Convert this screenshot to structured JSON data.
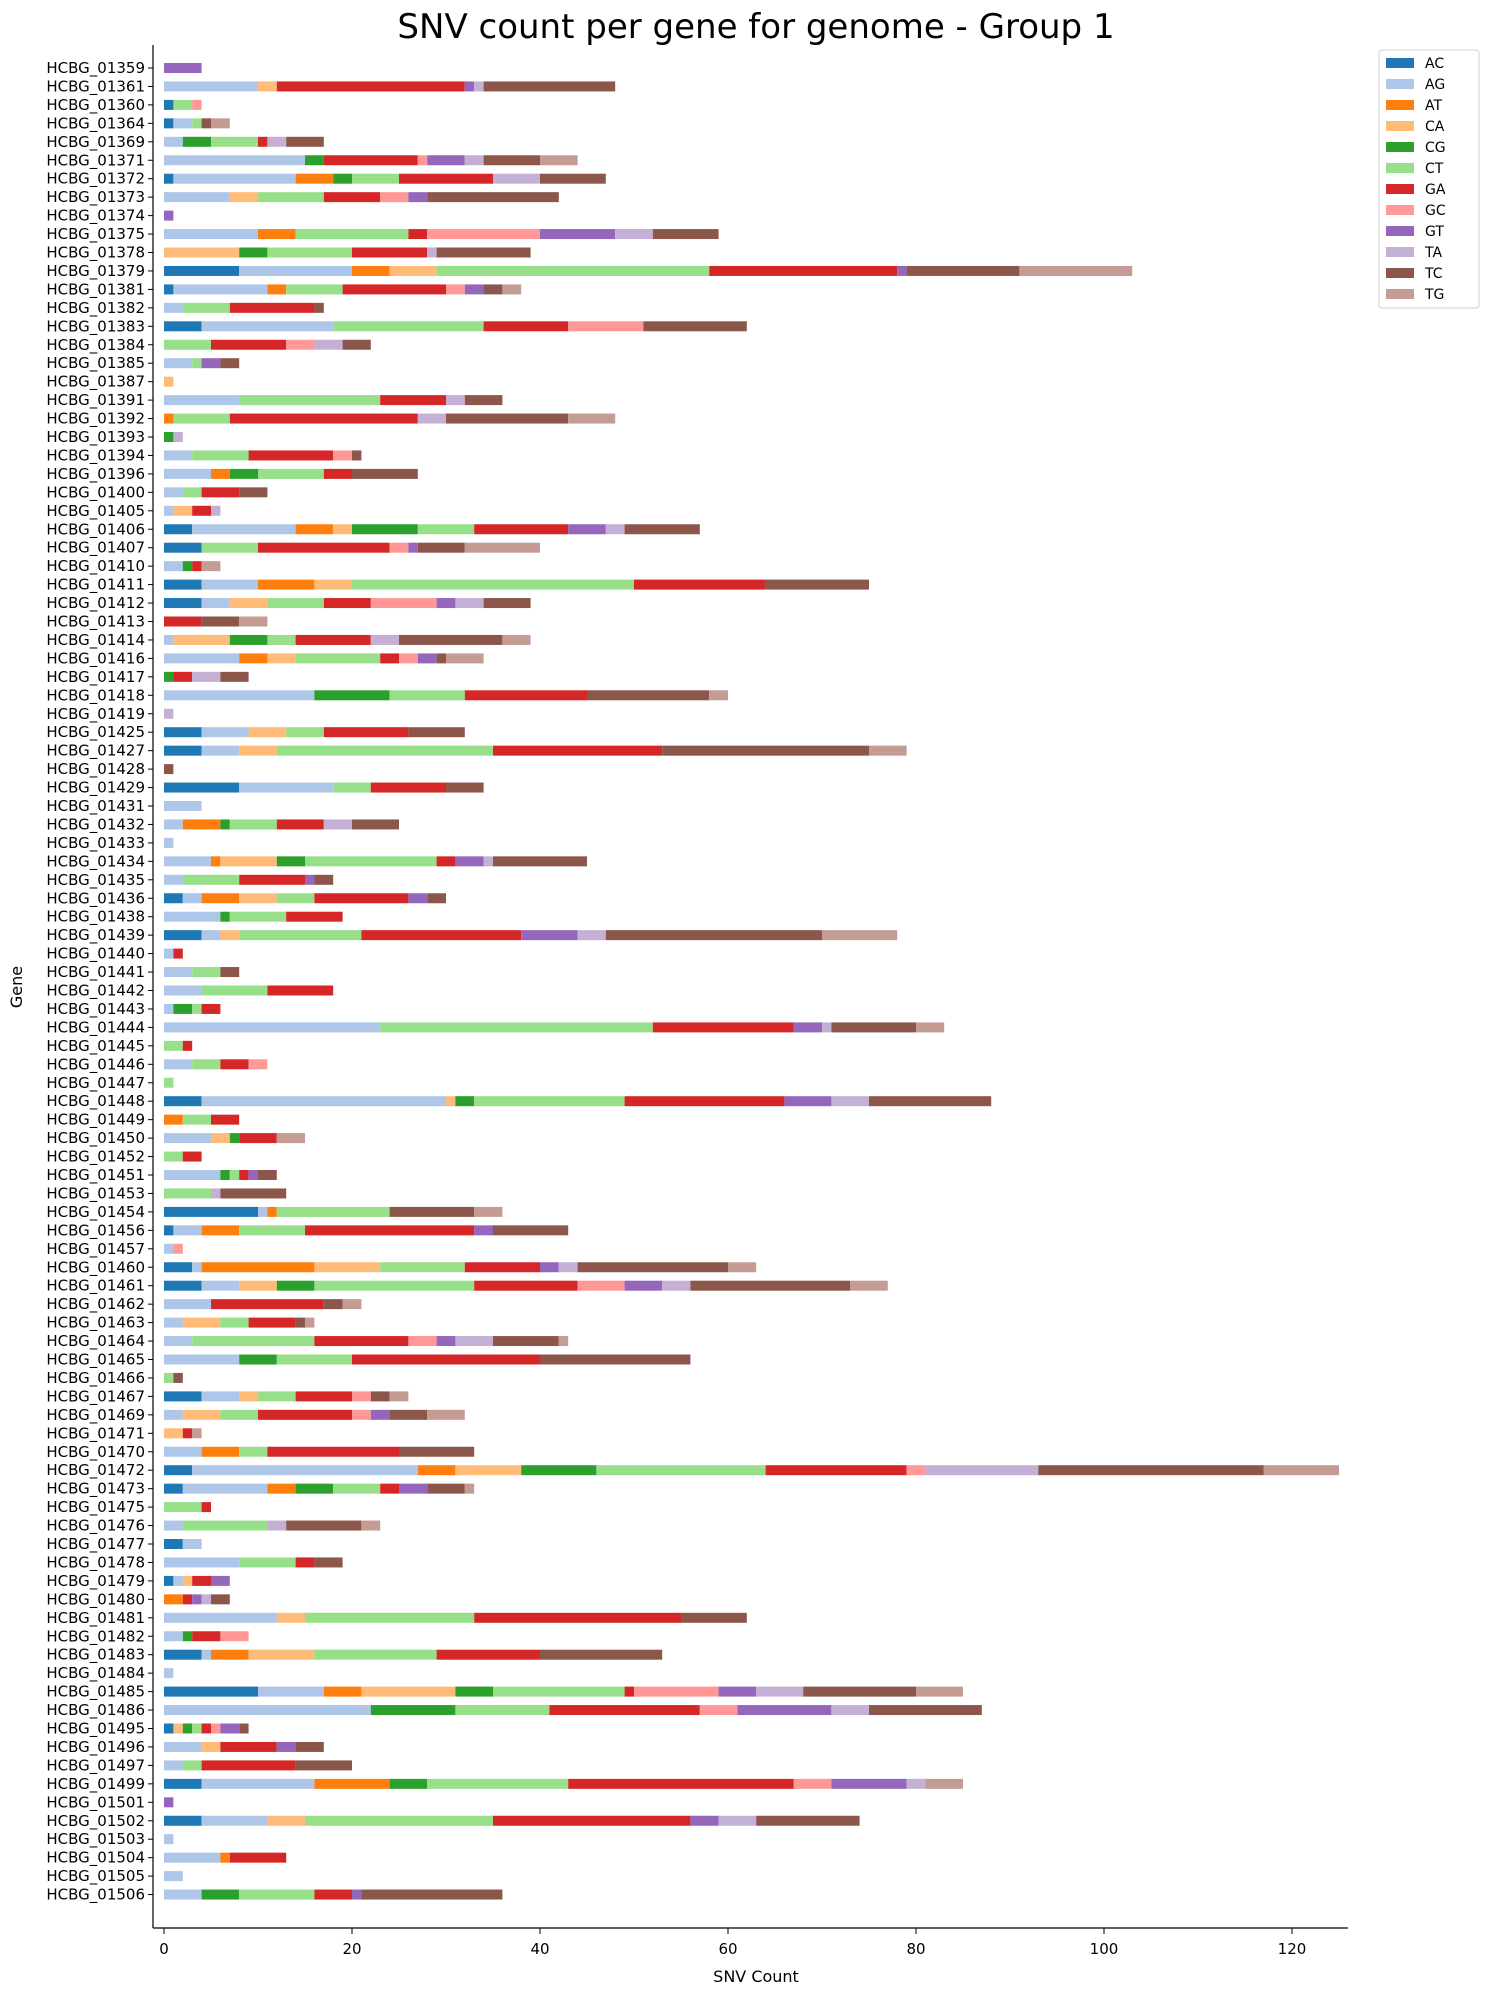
{
  "chart_data": {
    "type": "bar",
    "orientation": "horizontal",
    "stacked": true,
    "title": "SNV count per gene for genome - Group 1",
    "xlabel": "SNV Count",
    "ylabel": "Gene",
    "xlim": [
      -1,
      126
    ],
    "xticks": [
      0,
      20,
      40,
      60,
      80,
      100,
      120
    ],
    "grid": false,
    "legend_position": "top-right",
    "categories": [
      "HCBG_01359",
      "HCBG_01361",
      "HCBG_01360",
      "HCBG_01364",
      "HCBG_01369",
      "HCBG_01371",
      "HCBG_01372",
      "HCBG_01373",
      "HCBG_01374",
      "HCBG_01375",
      "HCBG_01378",
      "HCBG_01379",
      "HCBG_01381",
      "HCBG_01382",
      "HCBG_01383",
      "HCBG_01384",
      "HCBG_01385",
      "HCBG_01387",
      "HCBG_01391",
      "HCBG_01392",
      "HCBG_01393",
      "HCBG_01394",
      "HCBG_01396",
      "HCBG_01400",
      "HCBG_01405",
      "HCBG_01406",
      "HCBG_01407",
      "HCBG_01410",
      "HCBG_01411",
      "HCBG_01412",
      "HCBG_01413",
      "HCBG_01414",
      "HCBG_01416",
      "HCBG_01417",
      "HCBG_01418",
      "HCBG_01419",
      "HCBG_01425",
      "HCBG_01427",
      "HCBG_01428",
      "HCBG_01429",
      "HCBG_01431",
      "HCBG_01432",
      "HCBG_01433",
      "HCBG_01434",
      "HCBG_01435",
      "HCBG_01436",
      "HCBG_01438",
      "HCBG_01439",
      "HCBG_01440",
      "HCBG_01441",
      "HCBG_01442",
      "HCBG_01443",
      "HCBG_01444",
      "HCBG_01445",
      "HCBG_01446",
      "HCBG_01447",
      "HCBG_01448",
      "HCBG_01449",
      "HCBG_01450",
      "HCBG_01452",
      "HCBG_01451",
      "HCBG_01453",
      "HCBG_01454",
      "HCBG_01456",
      "HCBG_01457",
      "HCBG_01460",
      "HCBG_01461",
      "HCBG_01462",
      "HCBG_01463",
      "HCBG_01464",
      "HCBG_01465",
      "HCBG_01466",
      "HCBG_01467",
      "HCBG_01469",
      "HCBG_01471",
      "HCBG_01470",
      "HCBG_01472",
      "HCBG_01473",
      "HCBG_01475",
      "HCBG_01476",
      "HCBG_01477",
      "HCBG_01478",
      "HCBG_01479",
      "HCBG_01480",
      "HCBG_01481",
      "HCBG_01482",
      "HCBG_01483",
      "HCBG_01484",
      "HCBG_01485",
      "HCBG_01486",
      "HCBG_01495",
      "HCBG_01496",
      "HCBG_01497",
      "HCBG_01499",
      "HCBG_01501",
      "HCBG_01502",
      "HCBG_01503",
      "HCBG_01504",
      "HCBG_01505",
      "HCBG_01506"
    ],
    "series": [
      {
        "name": "AC",
        "color": "#1f77b4",
        "values": [
          0,
          0,
          1,
          1,
          0,
          0,
          1,
          0,
          0,
          0,
          0,
          8,
          1,
          0,
          4,
          0,
          0,
          0,
          0,
          0,
          0,
          0,
          0,
          0,
          0,
          3,
          4,
          0,
          4,
          4,
          0,
          0,
          0,
          0,
          0,
          0,
          4,
          4,
          0,
          8,
          0,
          0,
          0,
          0,
          0,
          2,
          0,
          4,
          0,
          0,
          0,
          0,
          0,
          0,
          0,
          0,
          4,
          0,
          0,
          0,
          0,
          0,
          10,
          1,
          0,
          3,
          4,
          0,
          0,
          0,
          0,
          0,
          4,
          0,
          0,
          0,
          3,
          2,
          0,
          0,
          2,
          0,
          1,
          0,
          0,
          0,
          4,
          0,
          10,
          0,
          1,
          0,
          0,
          4,
          0,
          4,
          0,
          0,
          0,
          0
        ]
      },
      {
        "name": "AG",
        "color": "#aec7e8",
        "values": [
          0,
          10,
          0,
          2,
          2,
          15,
          13,
          7,
          0,
          10,
          0,
          12,
          10,
          2,
          14,
          0,
          3,
          0,
          8,
          0,
          0,
          3,
          5,
          2,
          1,
          11,
          0,
          2,
          6,
          3,
          0,
          1,
          8,
          0,
          16,
          0,
          5,
          4,
          0,
          10,
          4,
          2,
          1,
          5,
          2,
          2,
          6,
          2,
          1,
          3,
          4,
          1,
          23,
          0,
          3,
          0,
          26,
          0,
          5,
          0,
          6,
          0,
          1,
          3,
          1,
          1,
          4,
          5,
          2,
          3,
          8,
          0,
          4,
          2,
          0,
          4,
          24,
          9,
          0,
          2,
          2,
          8,
          1,
          0,
          12,
          2,
          1,
          1,
          7,
          22,
          0,
          4,
          2,
          12,
          0,
          7,
          1,
          6,
          2,
          4
        ]
      },
      {
        "name": "AT",
        "color": "#ff7f0e",
        "values": [
          0,
          0,
          0,
          0,
          0,
          0,
          4,
          0,
          0,
          4,
          0,
          4,
          2,
          0,
          0,
          0,
          0,
          0,
          0,
          1,
          0,
          0,
          2,
          0,
          0,
          4,
          0,
          0,
          6,
          0,
          0,
          0,
          3,
          0,
          0,
          0,
          0,
          0,
          0,
          0,
          0,
          4,
          0,
          1,
          0,
          4,
          0,
          0,
          0,
          0,
          0,
          0,
          0,
          0,
          0,
          0,
          0,
          2,
          0,
          0,
          0,
          0,
          1,
          4,
          0,
          12,
          0,
          0,
          0,
          0,
          0,
          0,
          0,
          0,
          0,
          4,
          4,
          3,
          0,
          0,
          0,
          0,
          0,
          2,
          0,
          0,
          4,
          0,
          4,
          0,
          0,
          0,
          0,
          8,
          0,
          0,
          0,
          1,
          0,
          0
        ]
      },
      {
        "name": "CA",
        "color": "#ffbb78",
        "values": [
          0,
          2,
          0,
          0,
          0,
          0,
          0,
          3,
          0,
          0,
          8,
          5,
          0,
          0,
          0,
          0,
          0,
          1,
          0,
          0,
          0,
          0,
          0,
          0,
          2,
          2,
          0,
          0,
          4,
          4,
          0,
          6,
          3,
          0,
          0,
          0,
          4,
          4,
          0,
          0,
          0,
          0,
          0,
          6,
          0,
          4,
          0,
          2,
          0,
          0,
          0,
          0,
          0,
          0,
          0,
          0,
          1,
          0,
          2,
          0,
          0,
          0,
          0,
          0,
          0,
          7,
          4,
          0,
          4,
          0,
          0,
          0,
          2,
          4,
          2,
          0,
          7,
          0,
          0,
          0,
          0,
          0,
          1,
          0,
          3,
          0,
          7,
          0,
          10,
          0,
          1,
          2,
          0,
          0,
          0,
          4,
          0,
          0,
          0,
          0
        ]
      },
      {
        "name": "CG",
        "color": "#2ca02c",
        "values": [
          0,
          0,
          0,
          0,
          3,
          2,
          2,
          0,
          0,
          0,
          3,
          0,
          0,
          0,
          0,
          0,
          0,
          0,
          0,
          0,
          1,
          0,
          3,
          0,
          0,
          7,
          0,
          1,
          0,
          0,
          0,
          4,
          0,
          1,
          8,
          0,
          0,
          0,
          0,
          0,
          0,
          1,
          0,
          3,
          0,
          0,
          1,
          0,
          0,
          0,
          0,
          2,
          0,
          0,
          0,
          0,
          2,
          0,
          1,
          0,
          1,
          0,
          0,
          0,
          0,
          0,
          4,
          0,
          0,
          0,
          4,
          0,
          0,
          0,
          0,
          0,
          8,
          4,
          0,
          0,
          0,
          0,
          0,
          0,
          0,
          1,
          0,
          0,
          4,
          9,
          1,
          0,
          0,
          4,
          0,
          0,
          0,
          0,
          0,
          4
        ]
      },
      {
        "name": "CT",
        "color": "#98df8a",
        "values": [
          0,
          0,
          2,
          1,
          5,
          0,
          5,
          7,
          0,
          12,
          9,
          29,
          6,
          5,
          16,
          5,
          1,
          0,
          15,
          6,
          0,
          6,
          7,
          2,
          0,
          6,
          6,
          0,
          30,
          6,
          0,
          3,
          9,
          0,
          8,
          0,
          4,
          23,
          0,
          4,
          0,
          5,
          0,
          14,
          6,
          4,
          6,
          13,
          0,
          3,
          7,
          1,
          29,
          2,
          3,
          1,
          16,
          3,
          0,
          2,
          1,
          5,
          12,
          7,
          0,
          9,
          17,
          0,
          3,
          13,
          8,
          1,
          4,
          4,
          0,
          3,
          18,
          5,
          4,
          9,
          0,
          6,
          0,
          0,
          18,
          0,
          13,
          0,
          14,
          10,
          1,
          0,
          2,
          15,
          0,
          20,
          0,
          0,
          0,
          8
        ]
      },
      {
        "name": "GA",
        "color": "#d62728",
        "values": [
          0,
          20,
          0,
          0,
          1,
          10,
          10,
          6,
          0,
          2,
          8,
          20,
          11,
          9,
          9,
          8,
          0,
          0,
          7,
          20,
          0,
          9,
          3,
          4,
          2,
          10,
          14,
          1,
          14,
          5,
          4,
          8,
          2,
          2,
          13,
          0,
          9,
          18,
          0,
          8,
          0,
          5,
          0,
          2,
          7,
          10,
          6,
          17,
          1,
          0,
          7,
          2,
          15,
          1,
          3,
          0,
          17,
          3,
          4,
          2,
          1,
          0,
          0,
          18,
          0,
          8,
          11,
          12,
          5,
          10,
          20,
          0,
          6,
          10,
          1,
          14,
          15,
          2,
          1,
          0,
          0,
          2,
          2,
          1,
          22,
          3,
          11,
          0,
          1,
          16,
          1,
          6,
          10,
          24,
          0,
          21,
          0,
          6,
          0,
          4
        ]
      },
      {
        "name": "GC",
        "color": "#ff9896",
        "values": [
          0,
          0,
          1,
          0,
          0,
          1,
          0,
          3,
          0,
          12,
          0,
          0,
          2,
          0,
          8,
          3,
          0,
          0,
          0,
          0,
          0,
          2,
          0,
          0,
          0,
          0,
          2,
          0,
          0,
          7,
          0,
          0,
          2,
          0,
          0,
          0,
          0,
          0,
          0,
          0,
          0,
          0,
          0,
          0,
          0,
          0,
          0,
          0,
          0,
          0,
          0,
          0,
          0,
          0,
          2,
          0,
          0,
          0,
          0,
          0,
          0,
          0,
          0,
          0,
          1,
          0,
          5,
          0,
          0,
          3,
          0,
          0,
          2,
          2,
          0,
          0,
          2,
          0,
          0,
          0,
          0,
          0,
          0,
          0,
          0,
          3,
          0,
          0,
          9,
          4,
          1,
          0,
          0,
          4,
          0,
          0,
          0,
          0,
          0,
          0
        ]
      },
      {
        "name": "GT",
        "color": "#9467bd",
        "values": [
          4,
          1,
          0,
          0,
          0,
          4,
          0,
          2,
          1,
          8,
          0,
          1,
          2,
          0,
          0,
          0,
          2,
          0,
          0,
          0,
          0,
          0,
          0,
          0,
          0,
          4,
          1,
          0,
          0,
          2,
          0,
          0,
          2,
          0,
          0,
          0,
          0,
          0,
          0,
          0,
          0,
          0,
          0,
          3,
          1,
          2,
          0,
          6,
          0,
          0,
          0,
          0,
          3,
          0,
          0,
          0,
          5,
          0,
          0,
          0,
          1,
          0,
          0,
          2,
          0,
          2,
          4,
          0,
          0,
          2,
          0,
          0,
          0,
          2,
          0,
          0,
          0,
          3,
          0,
          0,
          0,
          0,
          2,
          1,
          0,
          0,
          0,
          0,
          4,
          10,
          2,
          2,
          0,
          8,
          1,
          3,
          0,
          0,
          0,
          1
        ]
      },
      {
        "name": "TA",
        "color": "#c5b0d5",
        "values": [
          0,
          1,
          0,
          0,
          2,
          2,
          5,
          0,
          0,
          4,
          1,
          0,
          0,
          0,
          0,
          3,
          0,
          0,
          2,
          3,
          1,
          0,
          0,
          0,
          1,
          2,
          0,
          0,
          0,
          3,
          0,
          3,
          0,
          3,
          0,
          1,
          0,
          0,
          0,
          0,
          0,
          3,
          0,
          1,
          0,
          0,
          0,
          3,
          0,
          0,
          0,
          0,
          1,
          0,
          0,
          0,
          4,
          0,
          0,
          0,
          0,
          1,
          0,
          0,
          0,
          2,
          3,
          0,
          0,
          4,
          0,
          0,
          0,
          0,
          0,
          0,
          12,
          0,
          0,
          2,
          0,
          0,
          0,
          1,
          0,
          0,
          0,
          0,
          5,
          4,
          0,
          0,
          0,
          2,
          0,
          4,
          0,
          0,
          0,
          0
        ]
      },
      {
        "name": "TC",
        "color": "#8c564b",
        "values": [
          0,
          14,
          0,
          1,
          4,
          6,
          7,
          14,
          0,
          7,
          10,
          12,
          2,
          1,
          11,
          3,
          2,
          0,
          4,
          13,
          0,
          1,
          7,
          3,
          0,
          8,
          5,
          0,
          11,
          5,
          4,
          11,
          1,
          3,
          13,
          0,
          6,
          22,
          1,
          4,
          0,
          5,
          0,
          10,
          2,
          2,
          0,
          23,
          0,
          2,
          0,
          0,
          9,
          0,
          0,
          0,
          13,
          0,
          0,
          0,
          2,
          7,
          9,
          8,
          0,
          16,
          17,
          2,
          1,
          7,
          16,
          1,
          2,
          4,
          0,
          8,
          24,
          4,
          0,
          8,
          0,
          3,
          0,
          2,
          7,
          0,
          13,
          0,
          12,
          12,
          1,
          3,
          6,
          0,
          0,
          11,
          0,
          0,
          0,
          15
        ]
      },
      {
        "name": "TG",
        "color": "#c49c94",
        "values": [
          0,
          0,
          0,
          2,
          0,
          4,
          0,
          0,
          0,
          0,
          0,
          12,
          2,
          0,
          0,
          0,
          0,
          0,
          0,
          5,
          0,
          0,
          0,
          0,
          0,
          0,
          8,
          2,
          0,
          0,
          3,
          3,
          4,
          0,
          2,
          0,
          0,
          4,
          0,
          0,
          0,
          0,
          0,
          0,
          0,
          0,
          0,
          8,
          0,
          0,
          0,
          0,
          3,
          0,
          0,
          0,
          0,
          0,
          3,
          0,
          0,
          0,
          3,
          0,
          0,
          3,
          4,
          2,
          1,
          1,
          0,
          0,
          2,
          4,
          1,
          0,
          8,
          1,
          0,
          2,
          0,
          0,
          0,
          0,
          0,
          0,
          0,
          0,
          5,
          0,
          0,
          0,
          0,
          4,
          0,
          0,
          0,
          0,
          0,
          0
        ]
      }
    ]
  }
}
